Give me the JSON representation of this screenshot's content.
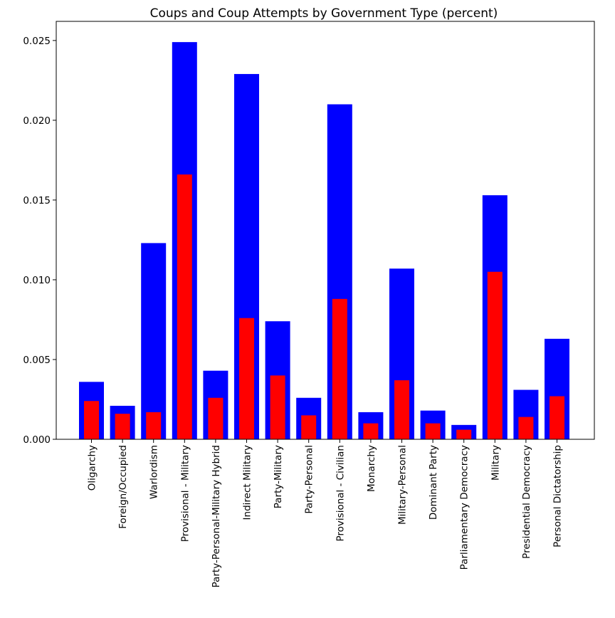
{
  "chart_data": {
    "type": "bar",
    "title": "Coups and Coup Attempts by Government Type (percent)",
    "xlabel": "",
    "ylabel": "",
    "ylim": [
      0,
      0.0262
    ],
    "grid": false,
    "legend": "none",
    "yticks": [
      "0.000",
      "0.005",
      "0.010",
      "0.015",
      "0.020",
      "0.025"
    ],
    "categories": [
      "Oligarchy",
      "Foreign/Occupied",
      "Warlordism",
      "Provisional - Military",
      "Party-Personal-Military Hybrid",
      "Indirect Military",
      "Party-Military",
      "Party-Personal",
      "Provisional - Civilian",
      "Monarchy",
      "Military-Personal",
      "Dominant Party",
      "Parliamentary Democracy",
      "Military",
      "Presidential Democracy",
      "Personal Dictatorship"
    ],
    "series": [
      {
        "color": "#0000ff",
        "values": [
          0.0036,
          0.0021,
          0.0123,
          0.0249,
          0.0043,
          0.0229,
          0.0074,
          0.0026,
          0.021,
          0.0017,
          0.0107,
          0.0018,
          0.0009,
          0.0153,
          0.0031,
          0.0063
        ]
      },
      {
        "color": "#ff0000",
        "values": [
          0.0024,
          0.0016,
          0.0017,
          0.0166,
          0.0026,
          0.0076,
          0.004,
          0.0015,
          0.0088,
          0.001,
          0.0037,
          0.001,
          0.0006,
          0.0105,
          0.0014,
          0.0027
        ]
      }
    ]
  }
}
